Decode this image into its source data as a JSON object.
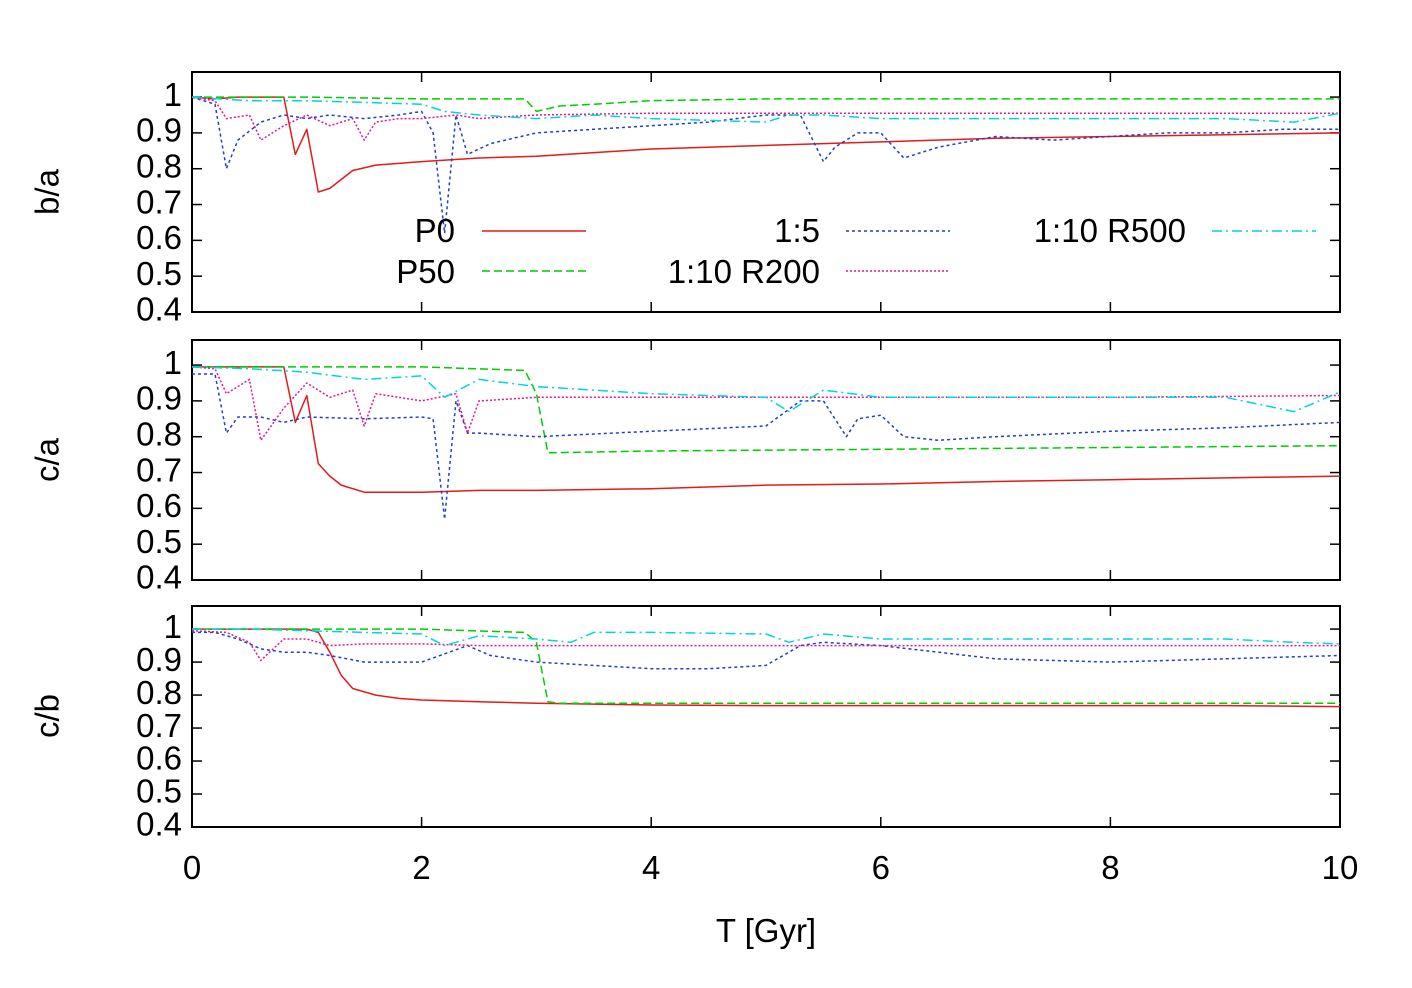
{
  "chart_data": [
    {
      "type": "line",
      "ylabel": "b/a",
      "ylim": [
        0.4,
        1.07
      ],
      "yticks": [
        0.4,
        0.5,
        0.6,
        0.7,
        0.8,
        0.9,
        1
      ],
      "ytick_labels": [
        "0.4",
        "0.5",
        "0.6",
        "0.7",
        "0.8",
        "0.9",
        "1"
      ],
      "xlim": [
        0,
        10
      ],
      "xticks": [
        0,
        2,
        4,
        6,
        8,
        10
      ],
      "show_x_tick_labels": false,
      "grid": false,
      "legend_position": "inside, lower-middle",
      "series": [
        {
          "name": "P0",
          "color": "#e41a1c",
          "dash": "solid",
          "x": [
            0,
            0.2,
            0.4,
            0.6,
            0.8,
            0.9,
            1.0,
            1.1,
            1.2,
            1.4,
            1.6,
            2.0,
            2.5,
            3.0,
            4.0,
            5.0,
            6.0,
            7.0,
            8.0,
            9.0,
            10.0
          ],
          "y": [
            1.0,
            0.995,
            1.0,
            1.0,
            1.0,
            0.84,
            0.91,
            0.735,
            0.745,
            0.795,
            0.81,
            0.82,
            0.83,
            0.835,
            0.855,
            0.865,
            0.875,
            0.885,
            0.89,
            0.895,
            0.9
          ]
        },
        {
          "name": "P50",
          "color": "#00cc00",
          "dash": "8,4",
          "x": [
            0,
            0.5,
            1.0,
            2.0,
            2.9,
            3.0,
            3.2,
            3.5,
            4.0,
            5.0,
            6.0,
            8.0,
            10.0
          ],
          "y": [
            1.0,
            1.0,
            1.0,
            0.995,
            0.995,
            0.96,
            0.975,
            0.98,
            0.99,
            0.995,
            0.995,
            0.995,
            0.995
          ]
        },
        {
          "name": "1:5",
          "color": "#1f3fcf",
          "dash": "3,3",
          "x": [
            0,
            0.2,
            0.3,
            0.4,
            0.6,
            0.8,
            1.0,
            1.2,
            1.5,
            1.8,
            2.0,
            2.1,
            2.2,
            2.3,
            2.4,
            2.6,
            3.0,
            3.5,
            4.0,
            4.5,
            5.0,
            5.3,
            5.5,
            5.6,
            5.8,
            6.0,
            6.2,
            6.5,
            7.0,
            7.5,
            8.0,
            8.5,
            9.0,
            9.5,
            10.0
          ],
          "y": [
            1.0,
            0.98,
            0.8,
            0.88,
            0.93,
            0.95,
            0.94,
            0.95,
            0.94,
            0.95,
            0.96,
            0.9,
            0.62,
            0.95,
            0.84,
            0.87,
            0.9,
            0.91,
            0.92,
            0.93,
            0.95,
            0.95,
            0.82,
            0.86,
            0.9,
            0.9,
            0.83,
            0.86,
            0.89,
            0.88,
            0.89,
            0.9,
            0.9,
            0.91,
            0.91
          ]
        },
        {
          "name": "1:10 R200",
          "color": "#e0179a",
          "dash": "2,2",
          "x": [
            0,
            0.2,
            0.3,
            0.5,
            0.6,
            0.8,
            1.0,
            1.2,
            1.4,
            1.5,
            1.6,
            1.8,
            2.0,
            2.3,
            2.5,
            3.0,
            4.0,
            5.0,
            6.0,
            8.0,
            10.0
          ],
          "y": [
            1.0,
            0.99,
            0.94,
            0.95,
            0.88,
            0.92,
            0.95,
            0.92,
            0.94,
            0.88,
            0.93,
            0.94,
            0.94,
            0.95,
            0.94,
            0.95,
            0.955,
            0.955,
            0.955,
            0.955,
            0.955
          ]
        },
        {
          "name": "1:10 R500",
          "color": "#00d4dc",
          "dash": "10,4,2,4",
          "x": [
            0,
            0.5,
            1.0,
            1.5,
            2.0,
            2.2,
            2.5,
            3.0,
            3.5,
            4.0,
            5.0,
            5.2,
            5.5,
            6.0,
            7.0,
            8.0,
            9.0,
            9.6,
            10.0
          ],
          "y": [
            1.0,
            0.99,
            0.99,
            0.985,
            0.98,
            0.96,
            0.95,
            0.94,
            0.95,
            0.94,
            0.93,
            0.95,
            0.95,
            0.94,
            0.94,
            0.94,
            0.94,
            0.93,
            0.955
          ]
        }
      ]
    },
    {
      "type": "line",
      "ylabel": "c/a",
      "ylim": [
        0.4,
        1.07
      ],
      "yticks": [
        0.4,
        0.5,
        0.6,
        0.7,
        0.8,
        0.9,
        1
      ],
      "ytick_labels": [
        "0.4",
        "0.5",
        "0.6",
        "0.7",
        "0.8",
        "0.9",
        "1"
      ],
      "xlim": [
        0,
        10
      ],
      "xticks": [
        0,
        2,
        4,
        6,
        8,
        10
      ],
      "show_x_tick_labels": false,
      "grid": false,
      "series": [
        {
          "name": "P0",
          "color": "#e41a1c",
          "dash": "solid",
          "x": [
            0,
            0.5,
            0.8,
            0.9,
            1.0,
            1.1,
            1.2,
            1.3,
            1.5,
            2.0,
            2.5,
            3.0,
            4.0,
            5.0,
            6.0,
            7.0,
            8.0,
            9.0,
            10.0
          ],
          "y": [
            0.995,
            0.995,
            0.995,
            0.84,
            0.915,
            0.725,
            0.69,
            0.665,
            0.645,
            0.645,
            0.65,
            0.65,
            0.655,
            0.665,
            0.668,
            0.675,
            0.68,
            0.685,
            0.69
          ]
        },
        {
          "name": "P50",
          "color": "#00cc00",
          "dash": "8,4",
          "x": [
            0,
            0.5,
            1.0,
            2.0,
            2.9,
            3.0,
            3.1,
            4.0,
            6.0,
            8.0,
            10.0
          ],
          "y": [
            0.995,
            0.995,
            0.995,
            0.995,
            0.985,
            0.92,
            0.755,
            0.76,
            0.765,
            0.77,
            0.775
          ]
        },
        {
          "name": "1:5",
          "color": "#1f3fcf",
          "dash": "3,3",
          "x": [
            0,
            0.2,
            0.3,
            0.4,
            0.6,
            0.8,
            1.0,
            1.5,
            2.0,
            2.1,
            2.2,
            2.3,
            2.4,
            2.5,
            3.0,
            4.0,
            5.0,
            5.3,
            5.5,
            5.7,
            5.8,
            6.0,
            6.2,
            6.5,
            7.0,
            8.0,
            9.0,
            10.0
          ],
          "y": [
            0.975,
            0.975,
            0.81,
            0.855,
            0.855,
            0.84,
            0.855,
            0.85,
            0.855,
            0.85,
            0.57,
            0.9,
            0.81,
            0.81,
            0.8,
            0.815,
            0.83,
            0.9,
            0.9,
            0.8,
            0.85,
            0.86,
            0.8,
            0.79,
            0.8,
            0.815,
            0.825,
            0.84
          ]
        },
        {
          "name": "1:10 R200",
          "color": "#e0179a",
          "dash": "2,2",
          "x": [
            0,
            0.2,
            0.3,
            0.5,
            0.6,
            0.8,
            1.0,
            1.2,
            1.4,
            1.5,
            1.6,
            2.0,
            2.3,
            2.4,
            2.5,
            3.0,
            4.0,
            6.0,
            8.0,
            10.0
          ],
          "y": [
            0.995,
            0.99,
            0.92,
            0.96,
            0.79,
            0.88,
            0.95,
            0.91,
            0.93,
            0.83,
            0.92,
            0.9,
            0.92,
            0.81,
            0.9,
            0.91,
            0.91,
            0.91,
            0.91,
            0.915
          ]
        },
        {
          "name": "1:10 R500",
          "color": "#00d4dc",
          "dash": "10,4,2,4",
          "x": [
            0,
            0.5,
            1.0,
            1.5,
            2.0,
            2.2,
            2.5,
            3.0,
            3.5,
            4.0,
            5.0,
            5.2,
            5.5,
            6.0,
            7.0,
            8.0,
            9.0,
            9.6,
            10.0
          ],
          "y": [
            0.995,
            0.99,
            0.98,
            0.96,
            0.97,
            0.91,
            0.96,
            0.94,
            0.93,
            0.92,
            0.91,
            0.87,
            0.93,
            0.91,
            0.91,
            0.91,
            0.91,
            0.87,
            0.925
          ]
        }
      ]
    },
    {
      "type": "line",
      "ylabel": "c/b",
      "ylim": [
        0.4,
        1.07
      ],
      "yticks": [
        0.4,
        0.5,
        0.6,
        0.7,
        0.8,
        0.9,
        1
      ],
      "ytick_labels": [
        "0.4",
        "0.5",
        "0.6",
        "0.7",
        "0.8",
        "0.9",
        "1"
      ],
      "xlim": [
        0,
        10
      ],
      "xticks": [
        0,
        2,
        4,
        6,
        8,
        10
      ],
      "xtick_labels": [
        "0",
        "2",
        "4",
        "6",
        "8",
        "10"
      ],
      "xlabel": "T [Gyr]",
      "show_x_tick_labels": true,
      "grid": false,
      "series": [
        {
          "name": "P0",
          "color": "#e41a1c",
          "dash": "solid",
          "x": [
            0,
            0.5,
            1.0,
            1.1,
            1.2,
            1.3,
            1.4,
            1.6,
            1.8,
            2.0,
            2.5,
            3.0,
            4.0,
            5.0,
            6.0,
            7.0,
            8.0,
            9.0,
            10.0
          ],
          "y": [
            1.0,
            1.0,
            1.0,
            0.99,
            0.93,
            0.86,
            0.82,
            0.8,
            0.79,
            0.785,
            0.78,
            0.775,
            0.77,
            0.768,
            0.768,
            0.768,
            0.768,
            0.768,
            0.765
          ]
        },
        {
          "name": "P50",
          "color": "#00cc00",
          "dash": "8,4",
          "x": [
            0,
            0.5,
            1.0,
            2.0,
            2.9,
            3.0,
            3.1,
            3.2,
            4.0,
            6.0,
            8.0,
            10.0
          ],
          "y": [
            1.0,
            1.0,
            1.0,
            1.0,
            0.99,
            0.96,
            0.78,
            0.775,
            0.775,
            0.775,
            0.775,
            0.775
          ]
        },
        {
          "name": "1:5",
          "color": "#1f3fcf",
          "dash": "3,3",
          "x": [
            0,
            0.2,
            0.4,
            0.6,
            0.8,
            1.0,
            1.2,
            1.5,
            2.0,
            2.4,
            2.6,
            3.0,
            3.5,
            4.0,
            4.5,
            5.0,
            5.3,
            5.5,
            6.0,
            6.5,
            7.0,
            8.0,
            9.0,
            10.0
          ],
          "y": [
            0.99,
            0.99,
            0.97,
            0.94,
            0.93,
            0.93,
            0.92,
            0.9,
            0.9,
            0.95,
            0.92,
            0.9,
            0.89,
            0.88,
            0.88,
            0.89,
            0.95,
            0.96,
            0.95,
            0.93,
            0.91,
            0.9,
            0.91,
            0.92
          ]
        },
        {
          "name": "1:10 R200",
          "color": "#e0179a",
          "dash": "2,2",
          "x": [
            0,
            0.3,
            0.5,
            0.6,
            0.8,
            1.0,
            1.2,
            1.5,
            2.0,
            2.5,
            3.0,
            4.0,
            6.0,
            8.0,
            10.0
          ],
          "y": [
            0.995,
            0.99,
            0.96,
            0.905,
            0.97,
            0.97,
            0.95,
            0.955,
            0.955,
            0.95,
            0.95,
            0.95,
            0.95,
            0.95,
            0.95
          ]
        },
        {
          "name": "1:10 R500",
          "color": "#00d4dc",
          "dash": "10,4,2,4",
          "x": [
            0,
            0.5,
            1.0,
            1.5,
            2.0,
            2.2,
            2.5,
            3.0,
            3.3,
            3.5,
            4.0,
            5.0,
            5.2,
            5.5,
            6.0,
            7.0,
            8.0,
            9.0,
            9.6,
            10.0
          ],
          "y": [
            1.0,
            1.0,
            0.995,
            0.99,
            0.985,
            0.95,
            0.98,
            0.97,
            0.96,
            0.99,
            0.99,
            0.985,
            0.96,
            0.985,
            0.97,
            0.97,
            0.97,
            0.97,
            0.96,
            0.955
          ]
        }
      ]
    }
  ],
  "legend": {
    "items": [
      {
        "label": "P0",
        "color": "#e41a1c",
        "dash": "solid"
      },
      {
        "label": "P50",
        "color": "#00cc00",
        "dash": "8,4"
      },
      {
        "label": "1:5",
        "color": "#1f3fcf",
        "dash": "3,3"
      },
      {
        "label": "1:10 R200",
        "color": "#e0179a",
        "dash": "2,2"
      },
      {
        "label": "1:10 R500",
        "color": "#00d4dc",
        "dash": "10,4,2,4"
      }
    ]
  }
}
